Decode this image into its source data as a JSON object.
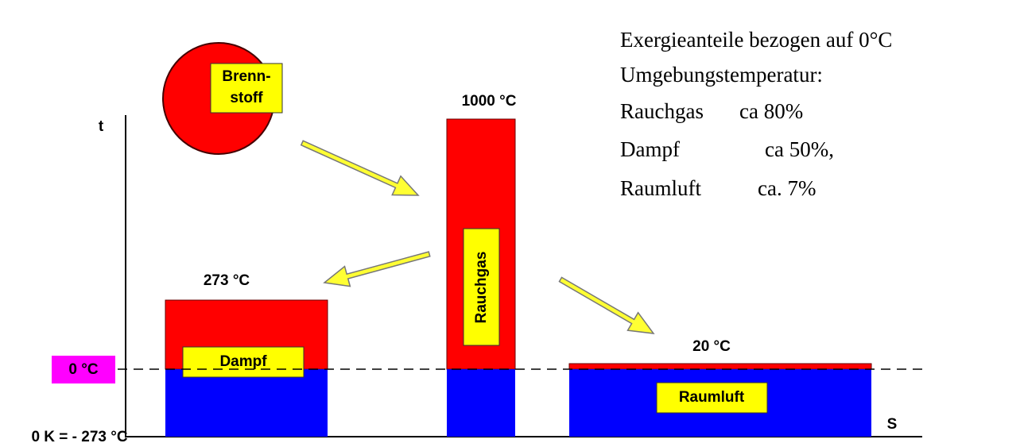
{
  "labels": {
    "fuel": [
      "Brenn-",
      "stoff"
    ],
    "t_axis": "t",
    "s_axis": "S",
    "zero_c": "0 °C",
    "zero_k": "0 K = - 273 °C"
  },
  "bars": [
    {
      "name": "Dampf",
      "temp": "273 °C"
    },
    {
      "name": "Rauchgas",
      "temp": "1000 °C"
    },
    {
      "name": "Raumluft",
      "temp": "20 °C"
    }
  ],
  "note": {
    "lines": [
      "Exergieanteile bezogen auf 0°C",
      "Umgebungstemperatur:"
    ],
    "rows": [
      [
        "Rauchgas",
        "ca 80%"
      ],
      [
        "Dampf",
        "ca 50%,"
      ],
      [
        "Raumluft",
        "ca. 7%"
      ]
    ]
  }
}
